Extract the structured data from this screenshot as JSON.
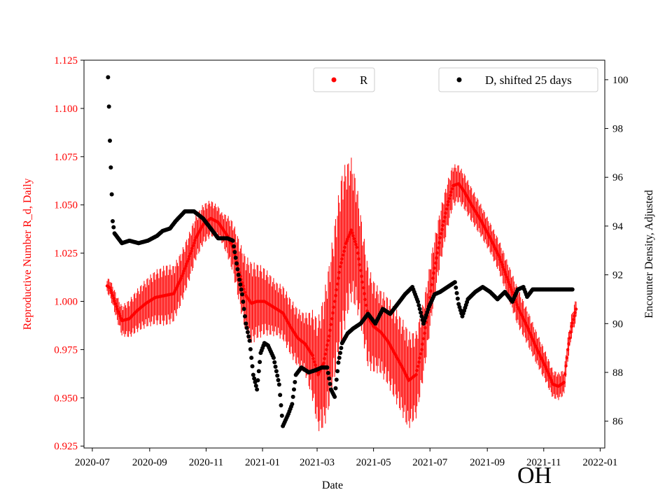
{
  "chart_data": {
    "type": "scatter",
    "title": "",
    "region_label": "OH",
    "xlabel": "Date",
    "ylabel_left": "Reproductive Number R_d, Daily",
    "ylabel_right": "Encounter Density, Adjusted",
    "x_start": "2020-07-01",
    "x_end": "2022-01-01",
    "x_ticks": [
      {
        "label": "2020-07",
        "day": 0
      },
      {
        "label": "2020-09",
        "day": 62
      },
      {
        "label": "2020-11",
        "day": 123
      },
      {
        "label": "2021-01",
        "day": 184
      },
      {
        "label": "2021-03",
        "day": 243
      },
      {
        "label": "2021-05",
        "day": 304
      },
      {
        "label": "2021-07",
        "day": 365
      },
      {
        "label": "2021-09",
        "day": 427
      },
      {
        "label": "2021-11",
        "day": 488
      },
      {
        "label": "2022-01",
        "day": 549
      }
    ],
    "xlim_days": [
      -9,
      554
    ],
    "ylim_left": [
      0.924,
      1.125
    ],
    "yticks_left": [
      "0.925",
      "0.950",
      "0.975",
      "1.000",
      "1.025",
      "1.050",
      "1.075",
      "1.100",
      "1.125"
    ],
    "ylim_right": [
      84.9,
      100.8
    ],
    "yticks_right": [
      "86",
      "88",
      "90",
      "92",
      "94",
      "96",
      "98",
      "100"
    ],
    "legend": [
      {
        "label": "R",
        "color": "#ff0000",
        "position": "top-center"
      },
      {
        "label": "D, shifted 25 days",
        "color": "#000000",
        "position": "top-right"
      }
    ],
    "series": [
      {
        "name": "R",
        "axis": "left",
        "color": "#ff0000",
        "marker": "point with vertical error bars",
        "first_day": 16,
        "last_day": 523,
        "knots": [
          [
            16,
            1.008
          ],
          [
            19,
            1.007
          ],
          [
            22,
            1.003
          ],
          [
            27,
            0.996
          ],
          [
            32,
            0.99
          ],
          [
            40,
            0.991
          ],
          [
            48,
            0.995
          ],
          [
            58,
            0.999
          ],
          [
            68,
            1.002
          ],
          [
            78,
            1.003
          ],
          [
            88,
            1.004
          ],
          [
            96,
            1.012
          ],
          [
            104,
            1.022
          ],
          [
            112,
            1.033
          ],
          [
            120,
            1.04
          ],
          [
            128,
            1.043
          ],
          [
            136,
            1.041
          ],
          [
            146,
            1.034
          ],
          [
            152,
            1.028
          ],
          [
            160,
            1.013
          ],
          [
            166,
            1.003
          ],
          [
            172,
            0.999
          ],
          [
            178,
            1.0
          ],
          [
            186,
            1.0
          ],
          [
            196,
            0.997
          ],
          [
            206,
            0.994
          ],
          [
            214,
            0.987
          ],
          [
            222,
            0.981
          ],
          [
            230,
            0.978
          ],
          [
            238,
            0.972
          ],
          [
            244,
            0.962
          ],
          [
            250,
            0.968
          ],
          [
            256,
            0.982
          ],
          [
            262,
            1.0
          ],
          [
            268,
            1.018
          ],
          [
            274,
            1.03
          ],
          [
            280,
            1.037
          ],
          [
            286,
            1.028
          ],
          [
            292,
            1.01
          ],
          [
            298,
            0.992
          ],
          [
            304,
            0.987
          ],
          [
            312,
            0.984
          ],
          [
            320,
            0.979
          ],
          [
            328,
            0.972
          ],
          [
            336,
            0.965
          ],
          [
            342,
            0.959
          ],
          [
            350,
            0.962
          ],
          [
            356,
            0.975
          ],
          [
            362,
            0.992
          ],
          [
            368,
            1.012
          ],
          [
            376,
            1.033
          ],
          [
            384,
            1.05
          ],
          [
            390,
            1.06
          ],
          [
            396,
            1.061
          ],
          [
            402,
            1.057
          ],
          [
            410,
            1.05
          ],
          [
            420,
            1.042
          ],
          [
            430,
            1.033
          ],
          [
            440,
            1.023
          ],
          [
            450,
            1.01
          ],
          [
            460,
            0.997
          ],
          [
            470,
            0.987
          ],
          [
            480,
            0.976
          ],
          [
            490,
            0.966
          ],
          [
            498,
            0.957
          ],
          [
            504,
            0.956
          ],
          [
            510,
            0.958
          ],
          [
            514,
            0.975
          ],
          [
            518,
            0.987
          ],
          [
            523,
            0.996
          ]
        ],
        "error_bars": [
          [
            16,
            0.004
          ],
          [
            40,
            0.01
          ],
          [
            80,
            0.016
          ],
          [
            110,
            0.012
          ],
          [
            140,
            0.008
          ],
          [
            170,
            0.022
          ],
          [
            200,
            0.014
          ],
          [
            230,
            0.016
          ],
          [
            250,
            0.035
          ],
          [
            270,
            0.045
          ],
          [
            290,
            0.03
          ],
          [
            310,
            0.022
          ],
          [
            340,
            0.026
          ],
          [
            370,
            0.016
          ],
          [
            395,
            0.01
          ],
          [
            430,
            0.008
          ],
          [
            460,
            0.01
          ],
          [
            490,
            0.008
          ],
          [
            523,
            0.006
          ]
        ]
      },
      {
        "name": "D, shifted 25 days",
        "axis": "right",
        "color": "#000000",
        "marker": "filled circle",
        "first_day": 17,
        "last_day": 519,
        "knots": [
          [
            17,
            100.1
          ],
          [
            18,
            98.9
          ],
          [
            19,
            97.5
          ],
          [
            20,
            96.4
          ],
          [
            21,
            95.3
          ],
          [
            22,
            94.2
          ],
          [
            24,
            93.7
          ],
          [
            28,
            93.5
          ],
          [
            32,
            93.3
          ],
          [
            40,
            93.4
          ],
          [
            50,
            93.3
          ],
          [
            60,
            93.4
          ],
          [
            70,
            93.6
          ],
          [
            76,
            93.8
          ],
          [
            84,
            93.9
          ],
          [
            90,
            94.2
          ],
          [
            100,
            94.6
          ],
          [
            110,
            94.6
          ],
          [
            120,
            94.3
          ],
          [
            126,
            94.0
          ],
          [
            136,
            93.5
          ],
          [
            146,
            93.5
          ],
          [
            152,
            93.4
          ],
          [
            158,
            92.0
          ],
          [
            162,
            91.2
          ],
          [
            166,
            90.0
          ],
          [
            170,
            89.3
          ],
          [
            174,
            87.9
          ],
          [
            178,
            87.3
          ],
          [
            182,
            88.8
          ],
          [
            186,
            89.2
          ],
          [
            190,
            89.1
          ],
          [
            196,
            88.6
          ],
          [
            202,
            87.5
          ],
          [
            206,
            85.8
          ],
          [
            212,
            86.3
          ],
          [
            216,
            86.7
          ],
          [
            220,
            87.9
          ],
          [
            226,
            88.2
          ],
          [
            234,
            88.0
          ],
          [
            242,
            88.1
          ],
          [
            248,
            88.2
          ],
          [
            254,
            88.2
          ],
          [
            258,
            87.3
          ],
          [
            262,
            87.0
          ],
          [
            266,
            88.4
          ],
          [
            270,
            89.2
          ],
          [
            276,
            89.6
          ],
          [
            282,
            89.8
          ],
          [
            290,
            90.0
          ],
          [
            298,
            90.4
          ],
          [
            306,
            90.0
          ],
          [
            314,
            90.6
          ],
          [
            322,
            90.4
          ],
          [
            330,
            90.8
          ],
          [
            338,
            91.2
          ],
          [
            346,
            91.5
          ],
          [
            352,
            90.9
          ],
          [
            358,
            90.0
          ],
          [
            364,
            90.7
          ],
          [
            370,
            91.2
          ],
          [
            376,
            91.3
          ],
          [
            384,
            91.5
          ],
          [
            392,
            91.7
          ],
          [
            396,
            90.8
          ],
          [
            400,
            90.3
          ],
          [
            406,
            91.0
          ],
          [
            414,
            91.3
          ],
          [
            422,
            91.5
          ],
          [
            430,
            91.3
          ],
          [
            438,
            91.0
          ],
          [
            446,
            91.3
          ],
          [
            454,
            90.9
          ],
          [
            460,
            91.4
          ],
          [
            466,
            91.5
          ],
          [
            470,
            91.1
          ],
          [
            476,
            91.4
          ],
          [
            490,
            91.4
          ],
          [
            505,
            91.4
          ],
          [
            519,
            91.4
          ]
        ]
      }
    ]
  }
}
